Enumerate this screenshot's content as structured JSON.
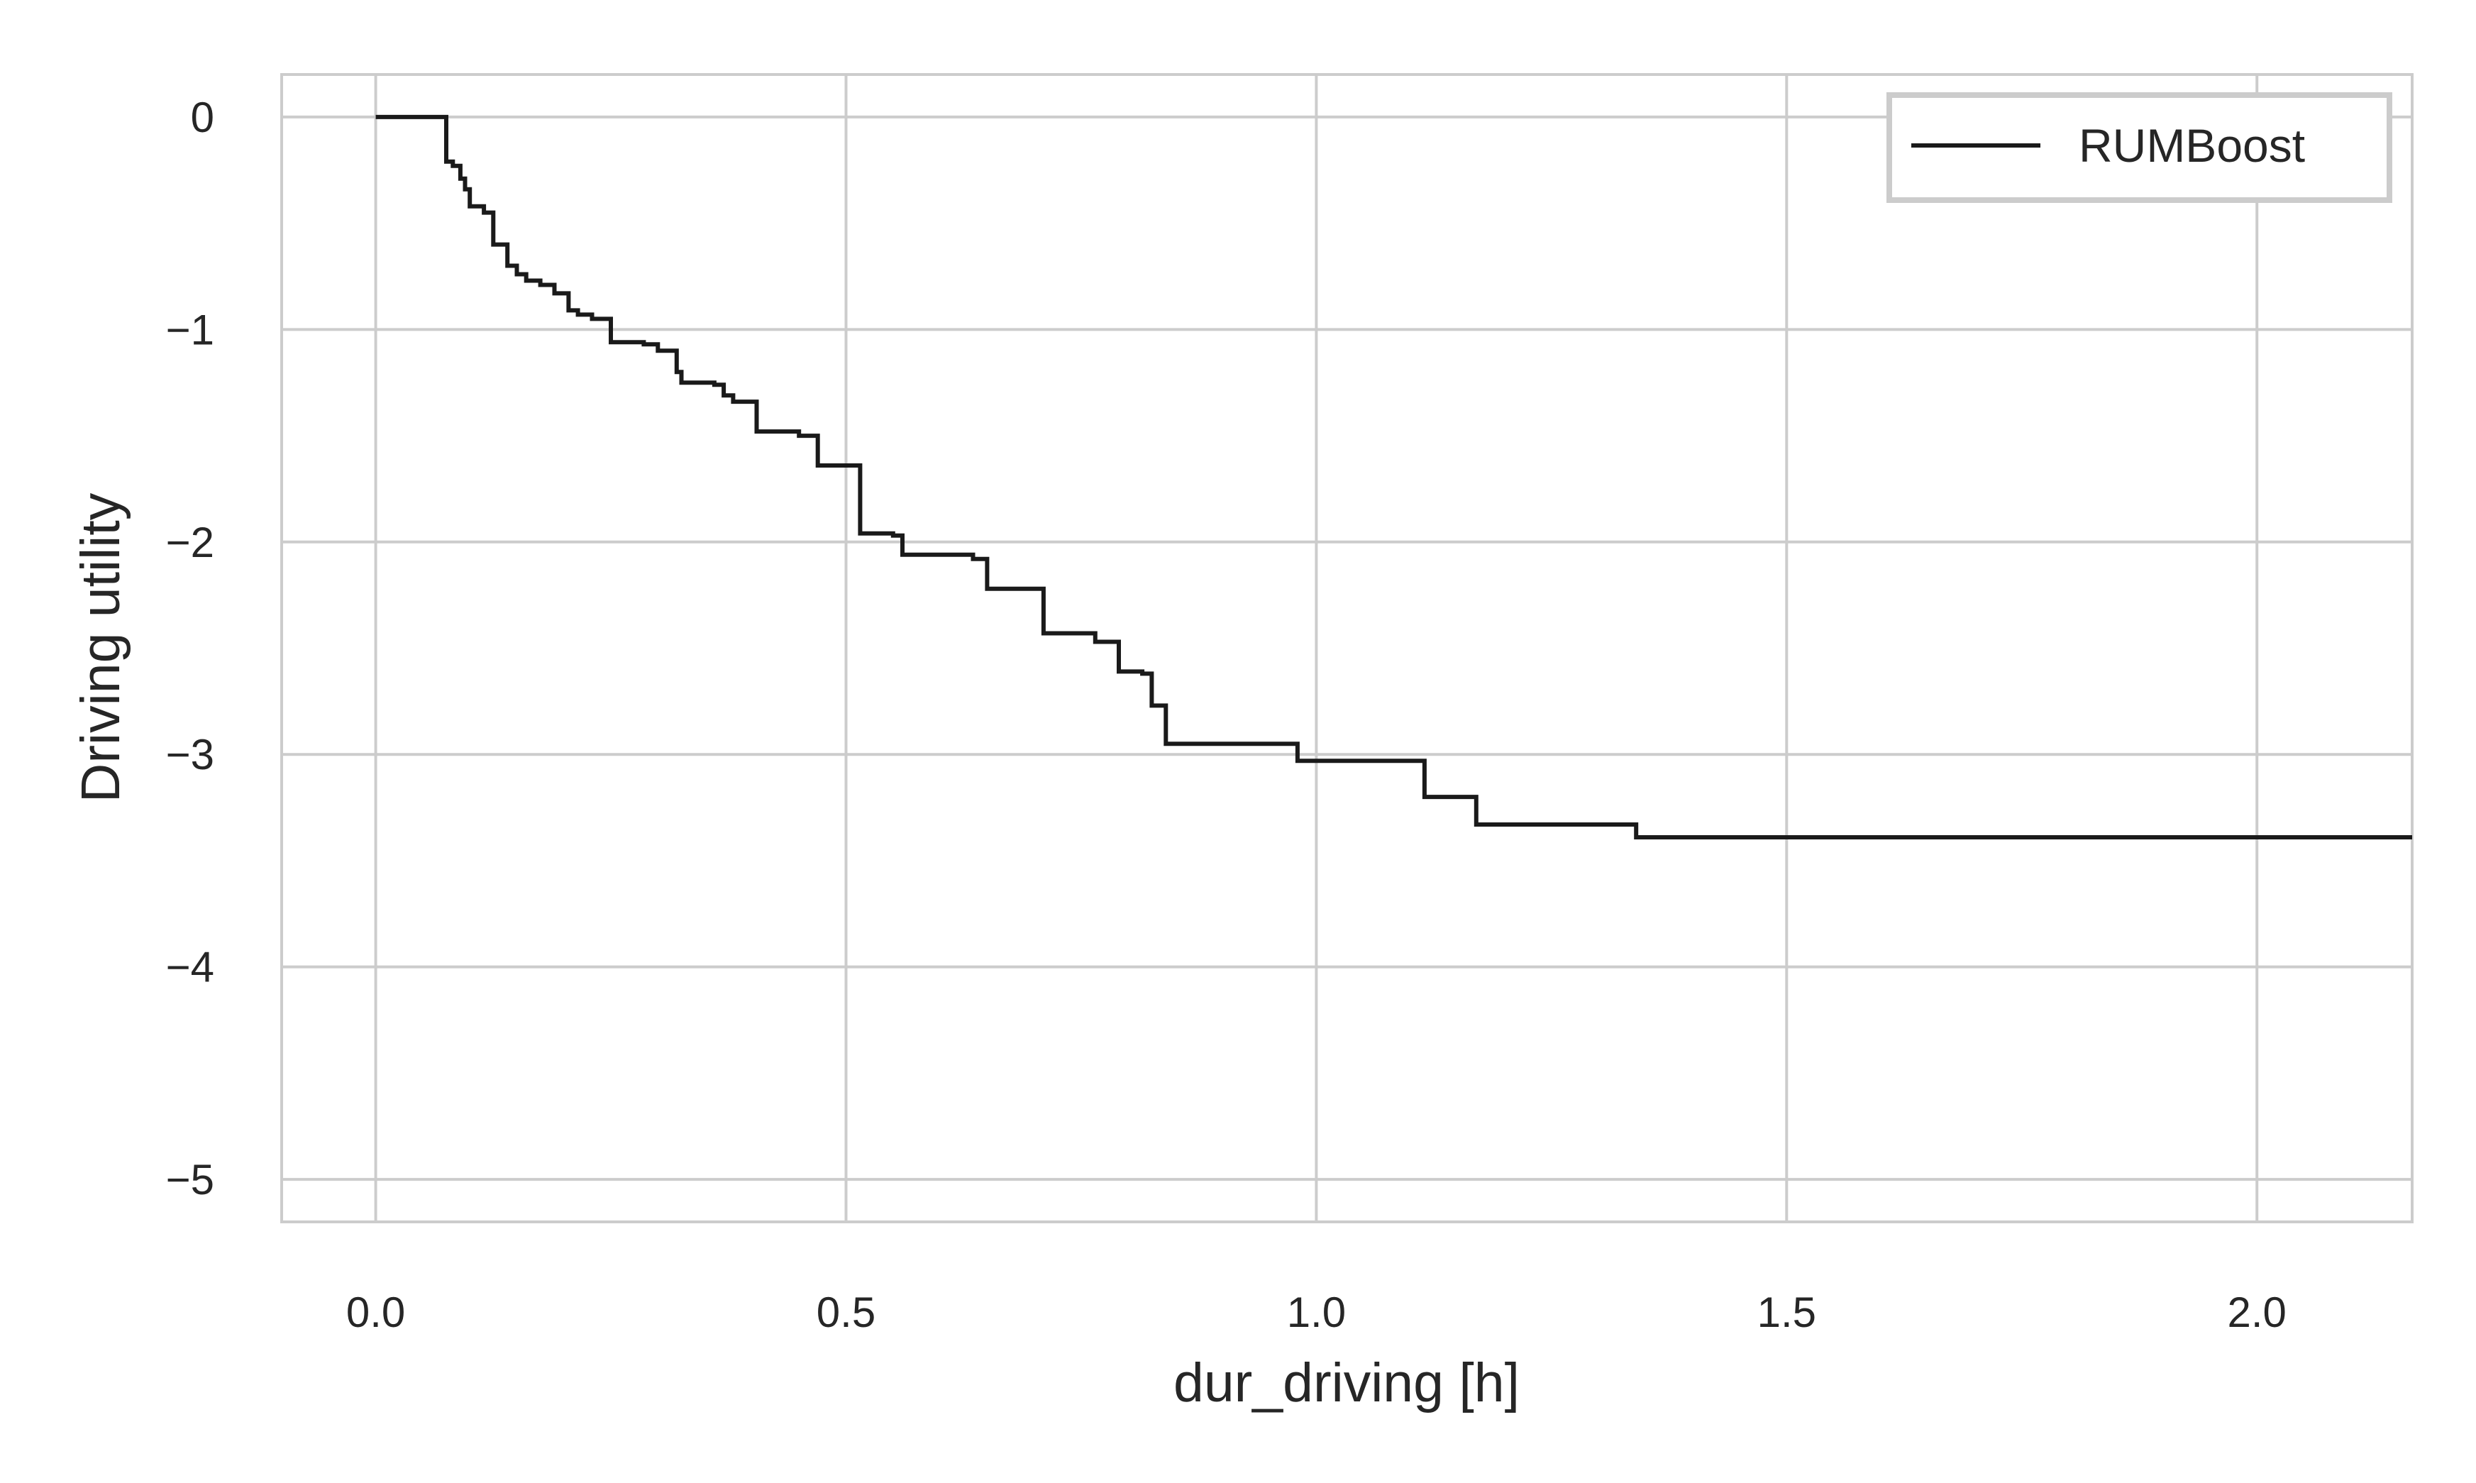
{
  "chart_data": {
    "type": "line",
    "drawstyle": "step",
    "title": "",
    "xlabel": "dur_driving [h]",
    "ylabel": "Driving utility",
    "xlim": [
      -0.1,
      2.165
    ],
    "ylim": [
      -5.2,
      0.2
    ],
    "grid": true,
    "legend_position": "top-right",
    "xticks": [
      0.0,
      0.5,
      1.0,
      1.5,
      2.0
    ],
    "xtick_labels": [
      "0.0",
      "0.5",
      "1.0",
      "1.5",
      "2.0"
    ],
    "yticks": [
      0,
      -1,
      -2,
      -3,
      -4,
      -5
    ],
    "ytick_labels": [
      "0",
      "−1",
      "−2",
      "−3",
      "−4",
      "−5"
    ],
    "series": [
      {
        "name": "RUMBoost",
        "color": "#1a1a1a",
        "x": [
          0.0,
          0.075,
          0.082,
          0.09,
          0.095,
          0.1,
          0.115,
          0.125,
          0.14,
          0.15,
          0.16,
          0.175,
          0.19,
          0.205,
          0.215,
          0.23,
          0.25,
          0.285,
          0.3,
          0.32,
          0.325,
          0.36,
          0.37,
          0.38,
          0.405,
          0.45,
          0.47,
          0.515,
          0.55,
          0.56,
          0.635,
          0.65,
          0.71,
          0.765,
          0.79,
          0.815,
          0.825,
          0.84,
          0.98,
          1.115,
          1.17,
          1.34,
          2.165
        ],
        "y": [
          0.0,
          -0.21,
          -0.23,
          -0.29,
          -0.34,
          -0.42,
          -0.45,
          -0.6,
          -0.7,
          -0.74,
          -0.77,
          -0.79,
          -0.83,
          -0.91,
          -0.93,
          -0.95,
          -1.06,
          -1.07,
          -1.1,
          -1.2,
          -1.25,
          -1.26,
          -1.31,
          -1.34,
          -1.48,
          -1.5,
          -1.64,
          -1.96,
          -1.97,
          -2.06,
          -2.08,
          -2.22,
          -2.43,
          -2.47,
          -2.61,
          -2.62,
          -2.77,
          -2.95,
          -3.03,
          -3.2,
          -3.33,
          -3.39,
          -3.39
        ]
      }
    ]
  }
}
